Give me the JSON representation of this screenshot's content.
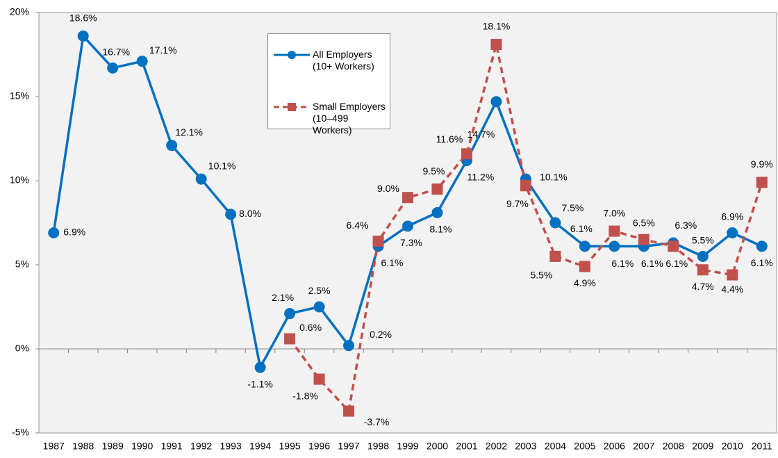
{
  "chart_data": {
    "type": "line",
    "categories": [
      "1987",
      "1988",
      "1989",
      "1990",
      "1991",
      "1992",
      "1993",
      "1994",
      "1995",
      "1996",
      "1997",
      "1998",
      "1999",
      "2000",
      "2001",
      "2002",
      "2003",
      "2004",
      "2005",
      "2006",
      "2007",
      "2008",
      "2009",
      "2010",
      "2011"
    ],
    "series": [
      {
        "name": "All Employers\n(10+ Workers)",
        "color": "#0070c0",
        "dash": false,
        "values": [
          6.9,
          18.6,
          16.7,
          17.1,
          12.1,
          10.1,
          8.0,
          -1.1,
          2.1,
          2.5,
          0.2,
          6.1,
          7.3,
          8.1,
          11.2,
          14.7,
          10.1,
          7.5,
          6.1,
          6.1,
          6.1,
          6.3,
          5.5,
          6.9,
          6.1
        ],
        "value_labels": [
          "6.9%",
          "18.6%",
          "16.7%",
          "17.1%",
          "12.1%",
          "10.1%",
          "8.0%",
          "-1.1%",
          "2.1%",
          "2.5%",
          "0.2%",
          "6.1%",
          "7.3%",
          "8.1%",
          "11.2%",
          "14.7%",
          "10.1%",
          "7.5%",
          "6.1%",
          "6.1%",
          "6.1%",
          "6.3%",
          "5.5%",
          "6.9%",
          "6.1%"
        ]
      },
      {
        "name": "Small Employers\n(10–499 Workers)",
        "color": "#c0504d",
        "dash": true,
        "values": [
          null,
          null,
          null,
          null,
          null,
          null,
          null,
          null,
          0.6,
          -1.8,
          -3.7,
          6.4,
          9.0,
          9.5,
          11.6,
          18.1,
          9.7,
          5.5,
          4.9,
          7.0,
          6.5,
          6.1,
          4.7,
          4.4,
          9.9
        ],
        "value_labels": [
          null,
          null,
          null,
          null,
          null,
          null,
          null,
          null,
          "0.6%",
          "-1.8%",
          "-3.7%",
          "6.4%",
          "9.0%",
          "9.5%",
          "11.6%",
          "18.1%",
          "9.7%",
          "5.5%",
          "4.9%",
          "7.0%",
          "6.5%",
          "6.1%",
          "4.7%",
          "4.4%",
          "9.9%"
        ]
      }
    ],
    "ylim": [
      -5,
      20
    ],
    "yticks": [
      {
        "value": -5,
        "label": "-5%"
      },
      {
        "value": 0,
        "label": "0%"
      },
      {
        "value": 5,
        "label": "5%"
      },
      {
        "value": 10,
        "label": "10%"
      },
      {
        "value": 15,
        "label": "15%"
      },
      {
        "value": 20,
        "label": "20%"
      }
    ]
  }
}
